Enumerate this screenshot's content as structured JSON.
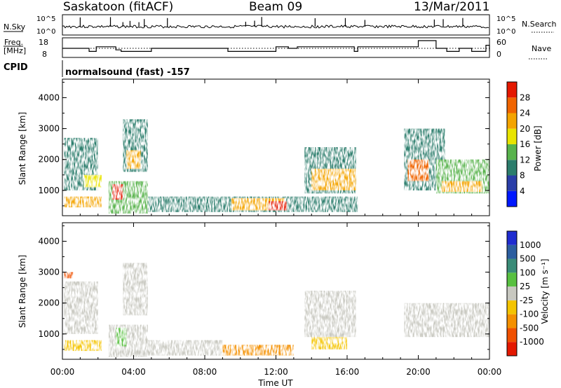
{
  "header": {
    "station": "Saskatoon (fitACF)",
    "beam": "Beam 09",
    "date": "13/Mar/2011"
  },
  "strips": {
    "nsky_label": "N.Sky",
    "nsky_ticks": [
      "10^5",
      "10^0"
    ],
    "nsearch_label": "N.Search",
    "nsearch_ticks": [
      "10^5",
      "10^0"
    ],
    "freq_label_line1": "Freq.",
    "freq_label_line2": "[MHz]",
    "freq_ticks": [
      "18",
      "8"
    ],
    "nave_label": "Nave",
    "nave_ticks": [
      "60",
      "0"
    ],
    "cpid_label": "CPID",
    "cpid_text": "normalsound (fast) -157"
  },
  "axes": {
    "ylabel": "Slant Range [km]",
    "xlabel": "Time UT",
    "y_ticks": [
      "1000",
      "2000",
      "3000",
      "4000"
    ],
    "x_ticks": [
      "00:00",
      "04:00",
      "08:00",
      "12:00",
      "16:00",
      "20:00",
      "00:00"
    ]
  },
  "colorbars": {
    "power": {
      "label": "Power [dB]",
      "ticks": [
        "4",
        "8",
        "12",
        "16",
        "20",
        "24",
        "28"
      ],
      "colors": [
        "#0018ff",
        "#2a3ea8",
        "#2c7d6c",
        "#58b34c",
        "#e9e400",
        "#f4a400",
        "#f06400",
        "#e41800"
      ]
    },
    "velocity": {
      "label": "Velocity [m s⁻¹]",
      "ticks": [
        "1000",
        "500",
        "100",
        "25",
        "-25",
        "-100",
        "-500",
        "-1000"
      ],
      "colors": [
        "#1f2cd0",
        "#2c5ea0",
        "#3a8c78",
        "#58c040",
        "#c8c8c0",
        "#f4c400",
        "#f49000",
        "#f05000",
        "#e41800"
      ]
    }
  },
  "chart_data": [
    {
      "type": "heatmap",
      "title": "Power",
      "xlabel": "Time UT",
      "ylabel": "Slant Range [km]",
      "x_unit": "hours UT",
      "xlim": [
        0,
        24
      ],
      "ylim": [
        180,
        4600
      ],
      "colorbar_label": "Power [dB]",
      "colorbar_range": [
        0,
        32
      ],
      "echo_regions": [
        {
          "t": [
            0.1,
            2.0
          ],
          "range_km": [
            1000,
            2700
          ],
          "level_db": 8
        },
        {
          "t": [
            0.1,
            2.2
          ],
          "range_km": [
            450,
            800
          ],
          "level_db": 22
        },
        {
          "t": [
            1.2,
            2.2
          ],
          "range_km": [
            1100,
            1500
          ],
          "level_db": 18
        },
        {
          "t": [
            2.6,
            4.8
          ],
          "range_km": [
            250,
            1300
          ],
          "level_db": 14
        },
        {
          "t": [
            2.8,
            3.4
          ],
          "range_km": [
            700,
            1200
          ],
          "level_db": 28
        },
        {
          "t": [
            3.4,
            4.8
          ],
          "range_km": [
            1600,
            3300
          ],
          "level_db": 10
        },
        {
          "t": [
            3.6,
            4.4
          ],
          "range_km": [
            1700,
            2300
          ],
          "level_db": 20
        },
        {
          "t": [
            4.8,
            16.6
          ],
          "range_km": [
            300,
            800
          ],
          "level_db": 10
        },
        {
          "t": [
            9.5,
            12.5
          ],
          "range_km": [
            350,
            750
          ],
          "level_db": 22
        },
        {
          "t": [
            11.6,
            12.6
          ],
          "range_km": [
            350,
            650
          ],
          "level_db": 28
        },
        {
          "t": [
            13.6,
            16.5
          ],
          "range_km": [
            900,
            2400
          ],
          "level_db": 10
        },
        {
          "t": [
            14.0,
            16.5
          ],
          "range_km": [
            1000,
            1700
          ],
          "level_db": 20
        },
        {
          "t": [
            19.2,
            21.5
          ],
          "range_km": [
            1000,
            3000
          ],
          "level_db": 10
        },
        {
          "t": [
            19.4,
            20.6
          ],
          "range_km": [
            1300,
            2000
          ],
          "level_db": 26
        },
        {
          "t": [
            21.0,
            24.0
          ],
          "range_km": [
            900,
            2000
          ],
          "level_db": 12
        },
        {
          "t": [
            21.3,
            23.6
          ],
          "range_km": [
            950,
            1300
          ],
          "level_db": 22
        }
      ]
    },
    {
      "type": "heatmap",
      "title": "Velocity",
      "xlabel": "Time UT",
      "ylabel": "Slant Range [km]",
      "x_unit": "hours UT",
      "xlim": [
        0,
        24
      ],
      "ylim": [
        180,
        4600
      ],
      "colorbar_label": "Velocity [m s⁻¹]",
      "colorbar_range": [
        -1000,
        1000
      ],
      "echo_regions": [
        {
          "t": [
            0.1,
            2.0
          ],
          "range_km": [
            1000,
            2700
          ],
          "velocity": 0
        },
        {
          "t": [
            0.1,
            2.2
          ],
          "range_km": [
            450,
            800
          ],
          "velocity": -60
        },
        {
          "t": [
            0.1,
            0.6
          ],
          "range_km": [
            2800,
            3000
          ],
          "velocity": -600
        },
        {
          "t": [
            2.6,
            4.8
          ],
          "range_km": [
            250,
            1300
          ],
          "velocity": 0
        },
        {
          "t": [
            3.0,
            3.6
          ],
          "range_km": [
            600,
            1200
          ],
          "velocity": 80
        },
        {
          "t": [
            3.4,
            4.8
          ],
          "range_km": [
            1600,
            3300
          ],
          "velocity": 0
        },
        {
          "t": [
            4.8,
            9.0
          ],
          "range_km": [
            300,
            800
          ],
          "velocity": 0
        },
        {
          "t": [
            9.0,
            13.0
          ],
          "range_km": [
            300,
            650
          ],
          "velocity": -150
        },
        {
          "t": [
            13.6,
            16.5
          ],
          "range_km": [
            900,
            2400
          ],
          "velocity": 0
        },
        {
          "t": [
            14.0,
            16.0
          ],
          "range_km": [
            500,
            900
          ],
          "velocity": -60
        },
        {
          "t": [
            19.2,
            24.0
          ],
          "range_km": [
            900,
            2000
          ],
          "velocity": 0
        }
      ]
    },
    {
      "type": "line",
      "title": "Frequency",
      "ylabel": "[MHz]",
      "ylim": [
        8,
        18
      ],
      "x": [
        0,
        1.5,
        1.9,
        3.0,
        3.3,
        5.0,
        9.3,
        12.0,
        12.7,
        13.2,
        16.4,
        16.6,
        20.0,
        21.0,
        21.6,
        22.3,
        23.0,
        23.8,
        24
      ],
      "y": [
        13,
        11,
        14,
        12,
        11,
        13,
        11,
        14,
        13,
        14,
        11,
        14,
        18,
        13,
        11,
        13,
        11,
        15,
        11
      ]
    }
  ]
}
